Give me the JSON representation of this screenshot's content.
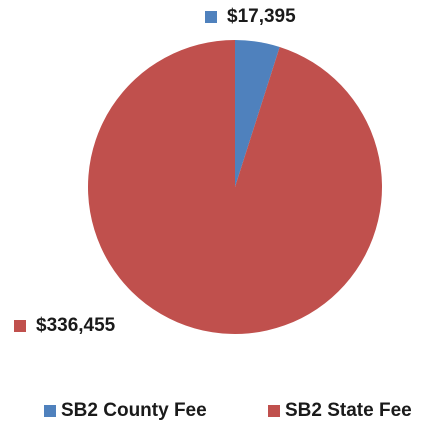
{
  "chart_data": {
    "type": "pie",
    "categories": [
      "SB2 County Fee",
      "SB2 State Fee"
    ],
    "values": [
      17395,
      336455
    ],
    "value_labels": [
      "$17,395",
      "$336,455"
    ],
    "colors": [
      "#4f81bd",
      "#c0504d"
    ],
    "legend": "bottom"
  }
}
